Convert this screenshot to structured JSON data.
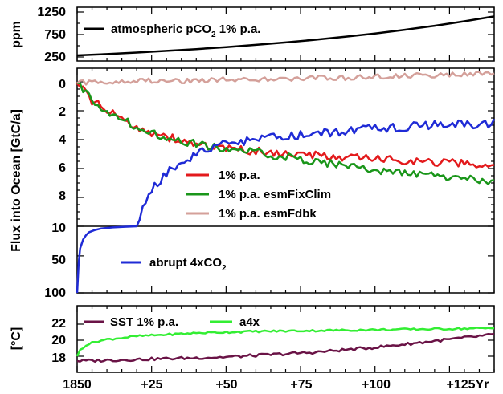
{
  "chart_data": {
    "type": "line",
    "x_ticks": [
      "1850",
      "+25",
      "+50",
      "+75",
      "+100",
      "+125Yr"
    ],
    "x_range": [
      0,
      140
    ],
    "panels": [
      {
        "id": "co2",
        "ylabel": "ppm",
        "ylim": [
          250,
          1250
        ],
        "yticks": [
          "250",
          "750",
          "1250"
        ],
        "series": [
          {
            "name": "atmospheric pCO",
            "sub": "2",
            "suffix": " 1% p.a.",
            "color": "#000000",
            "x": [
              0,
              10,
              20,
              30,
              40,
              50,
              60,
              70,
              80,
              90,
              100,
              110,
              120,
              130,
              140
            ],
            "y": [
              285,
              315,
              348,
              385,
              425,
              470,
              519,
              574,
              634,
              700,
              774,
              855,
              945,
              1044,
              1153
            ]
          }
        ]
      },
      {
        "id": "flux",
        "ylabel": "Flux into Ocean [GtC/a]",
        "ylim": [
          0,
          10
        ],
        "inverted": true,
        "yticks": [
          "0",
          "2",
          "4",
          "6",
          "8",
          "10"
        ],
        "series": [
          {
            "name": "1% p.a.",
            "color": "#e31a1c",
            "x": [
              0,
              5,
              10,
              15,
              20,
              25,
              30,
              35,
              40,
              45,
              50,
              60,
              70,
              80,
              90,
              100,
              110,
              120,
              130,
              140
            ],
            "y": [
              0.1,
              1.3,
              2.0,
              2.6,
              3.1,
              3.5,
              3.8,
              4.1,
              4.3,
              4.5,
              4.65,
              4.8,
              5.0,
              5.1,
              5.25,
              5.3,
              5.45,
              5.55,
              5.65,
              5.8
            ]
          },
          {
            "name": "1% p.a. esmFixClim",
            "color": "#1a961a",
            "x": [
              0,
              5,
              10,
              15,
              20,
              25,
              30,
              35,
              40,
              45,
              50,
              60,
              70,
              80,
              90,
              100,
              110,
              120,
              130,
              140
            ],
            "y": [
              0.1,
              1.2,
              2.0,
              2.6,
              3.1,
              3.5,
              3.8,
              4.1,
              4.3,
              4.5,
              4.65,
              4.9,
              5.2,
              5.5,
              5.8,
              6.1,
              6.35,
              6.5,
              6.7,
              7.0
            ]
          },
          {
            "name": "1% p.a. esmFdbk",
            "color": "#d4a09a",
            "x": [
              0,
              10,
              20,
              30,
              40,
              50,
              60,
              70,
              80,
              90,
              100,
              110,
              120,
              130,
              140
            ],
            "y": [
              0.1,
              0.0,
              -0.1,
              -0.05,
              -0.1,
              -0.2,
              -0.15,
              -0.2,
              -0.25,
              -0.3,
              -0.35,
              -0.4,
              -0.45,
              -0.5,
              -0.55
            ]
          },
          {
            "name": "abrupt 4xCO",
            "sub": "2",
            "color": "#1f2bd6",
            "x": [
              20,
              22,
              25,
              30,
              35,
              40,
              45,
              50,
              60,
              70,
              80,
              90,
              100,
              110,
              120,
              130,
              140
            ],
            "y": [
              10.0,
              8.6,
              7.5,
              6.3,
              5.5,
              5.0,
              4.6,
              4.3,
              4.0,
              3.8,
              3.6,
              3.4,
              3.25,
              3.1,
              3.0,
              2.95,
              2.85
            ]
          }
        ]
      },
      {
        "id": "flux-low",
        "ylim": [
          10,
          100
        ],
        "yticks": [
          "10",
          "50",
          "100"
        ],
        "series": [
          {
            "name": "abrupt 4xCO",
            "sub": "2",
            "color": "#1f2bd6",
            "x": [
              0,
              0.5,
              1,
              2,
              3,
              4,
              6,
              8,
              12,
              16,
              20
            ],
            "y": [
              100,
              60,
              40,
              28,
              22,
              18,
              15,
              13,
              11.5,
              10.7,
              10.0
            ]
          }
        ]
      },
      {
        "id": "sst",
        "ylabel": "[°C]",
        "ylim": [
          16.5,
          23.5
        ],
        "yticks": [
          "18",
          "20",
          "22"
        ],
        "series": [
          {
            "name": "SST 1% p.a.",
            "color": "#6a1346",
            "x": [
              0,
              10,
              20,
              30,
              40,
              50,
              60,
              70,
              80,
              90,
              100,
              110,
              120,
              130,
              140
            ],
            "y": [
              17.4,
              17.5,
              17.6,
              17.7,
              17.8,
              17.9,
              18.1,
              18.3,
              18.5,
              18.8,
              19.1,
              19.5,
              19.9,
              20.3,
              20.7
            ]
          },
          {
            "name": "a4x",
            "color": "#33ee33",
            "x": [
              0,
              1,
              3,
              6,
              10,
              15,
              20,
              30,
              40,
              50,
              60,
              80,
              100,
              120,
              140
            ],
            "y": [
              18.0,
              18.8,
              19.4,
              19.8,
              20.1,
              20.3,
              20.5,
              20.7,
              20.9,
              21.0,
              21.1,
              21.2,
              21.3,
              21.4,
              21.5
            ]
          }
        ]
      }
    ]
  }
}
